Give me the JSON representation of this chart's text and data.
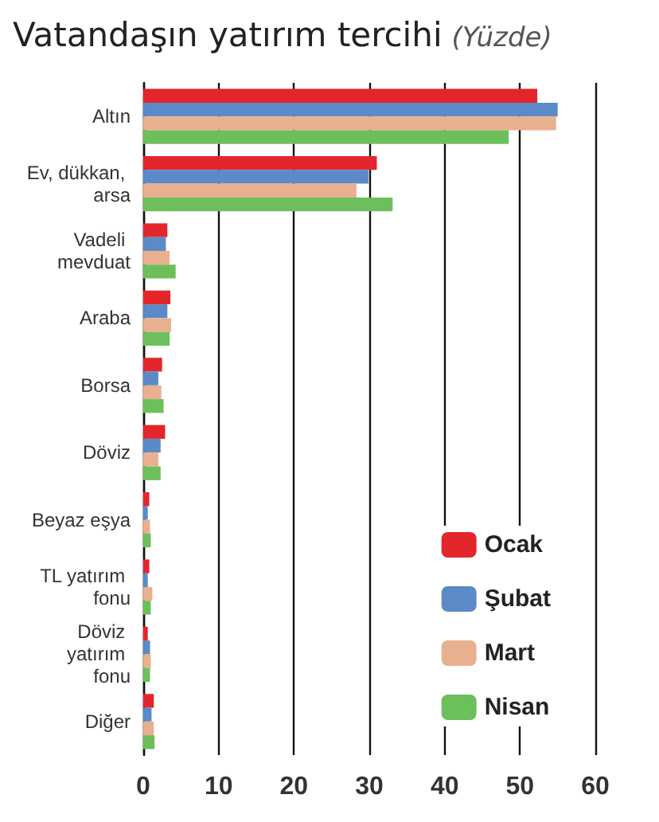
{
  "chart_data": {
    "type": "bar",
    "orientation": "horizontal",
    "title": "Vatandaşın yatırım tercihi",
    "subtitle": "(Yüzde)",
    "categories": [
      "Altın",
      "Ev, dükkan, arsa",
      "Vadeli mevduat",
      "Araba",
      "Borsa",
      "Döviz",
      "Beyaz eşya",
      "TL yatırım fonu",
      "Döviz yatırım fonu",
      "Diğer"
    ],
    "series": [
      {
        "name": "Ocak",
        "color": "#e3262b",
        "values": [
          52.3,
          31.0,
          3.2,
          3.6,
          2.5,
          2.9,
          0.8,
          0.8,
          0.6,
          1.4
        ]
      },
      {
        "name": "Şubat",
        "color": "#5b8ac6",
        "values": [
          55.0,
          29.9,
          3.0,
          3.2,
          2.0,
          2.3,
          0.6,
          0.6,
          0.9,
          1.1
        ]
      },
      {
        "name": "Mart",
        "color": "#e9b08f",
        "values": [
          54.8,
          28.3,
          3.5,
          3.7,
          2.4,
          2.0,
          0.9,
          1.2,
          1.0,
          1.4
        ]
      },
      {
        "name": "Nisan",
        "color": "#6dbf5b",
        "values": [
          48.5,
          33.1,
          4.3,
          3.5,
          2.7,
          2.3,
          1.0,
          1.0,
          0.9,
          1.5
        ]
      }
    ],
    "xlim": [
      0,
      60
    ],
    "xticks": [
      0,
      10,
      20,
      30,
      40,
      50,
      60
    ],
    "grid": "x",
    "legend": "bottom right"
  }
}
